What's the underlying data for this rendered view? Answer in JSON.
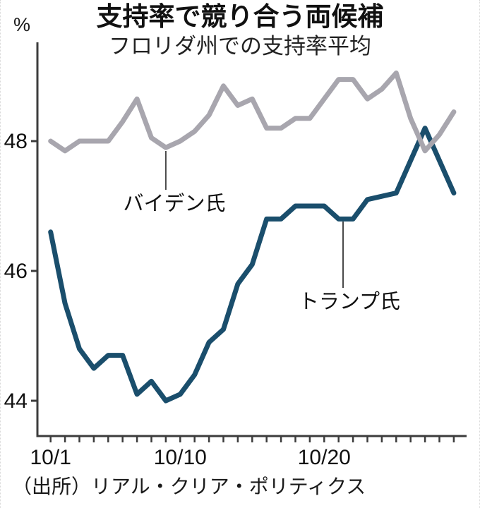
{
  "chart_data": {
    "type": "line",
    "title": "支持率で競り合う両候補",
    "subtitle": "フロリダ州での支持率平均",
    "unit": "%",
    "source": "（出所）リアル・クリア・ポリティクス",
    "grid": false,
    "legend_position": "inline-callouts",
    "x": [
      "10/1",
      "10/2",
      "10/3",
      "10/4",
      "10/5",
      "10/6",
      "10/7",
      "10/8",
      "10/9",
      "10/10",
      "10/11",
      "10/12",
      "10/13",
      "10/14",
      "10/15",
      "10/16",
      "10/17",
      "10/18",
      "10/19",
      "10/20",
      "10/21",
      "10/22",
      "10/23",
      "10/24",
      "10/25",
      "10/26",
      "10/27",
      "10/28",
      "10/29"
    ],
    "x_tick_labels": [
      {
        "label": "10/1",
        "day": 1
      },
      {
        "label": "10/10",
        "day": 10
      },
      {
        "label": "10/20",
        "day": 20
      }
    ],
    "yticks": [
      44,
      46,
      48
    ],
    "ylim": [
      43.4,
      49.5
    ],
    "series": [
      {
        "key": "trump",
        "name": "トランプ氏",
        "color": "#1a4e6c",
        "values": [
          46.6,
          45.5,
          44.8,
          44.5,
          44.7,
          44.7,
          44.1,
          44.3,
          44.0,
          44.1,
          44.4,
          44.9,
          45.1,
          45.8,
          46.1,
          46.8,
          46.8,
          47.0,
          47.0,
          47.0,
          46.8,
          46.8,
          47.1,
          47.15,
          47.2,
          47.7,
          48.2,
          47.7,
          47.2
        ]
      },
      {
        "key": "biden",
        "name": "バイデン氏",
        "color": "#a8a6ae",
        "values": [
          48.0,
          47.85,
          48.0,
          48.0,
          48.0,
          48.3,
          48.65,
          48.05,
          47.9,
          48.0,
          48.15,
          48.4,
          48.85,
          48.55,
          48.65,
          48.2,
          48.2,
          48.35,
          48.35,
          48.65,
          48.95,
          48.95,
          48.65,
          48.8,
          49.05,
          48.35,
          47.85,
          48.1,
          48.45
        ]
      }
    ],
    "annotations": [
      {
        "key": "biden",
        "label": "バイデン氏",
        "attach_x": "10/9"
      },
      {
        "key": "trump",
        "label": "トランプ氏",
        "attach_x": "10/21"
      }
    ]
  }
}
